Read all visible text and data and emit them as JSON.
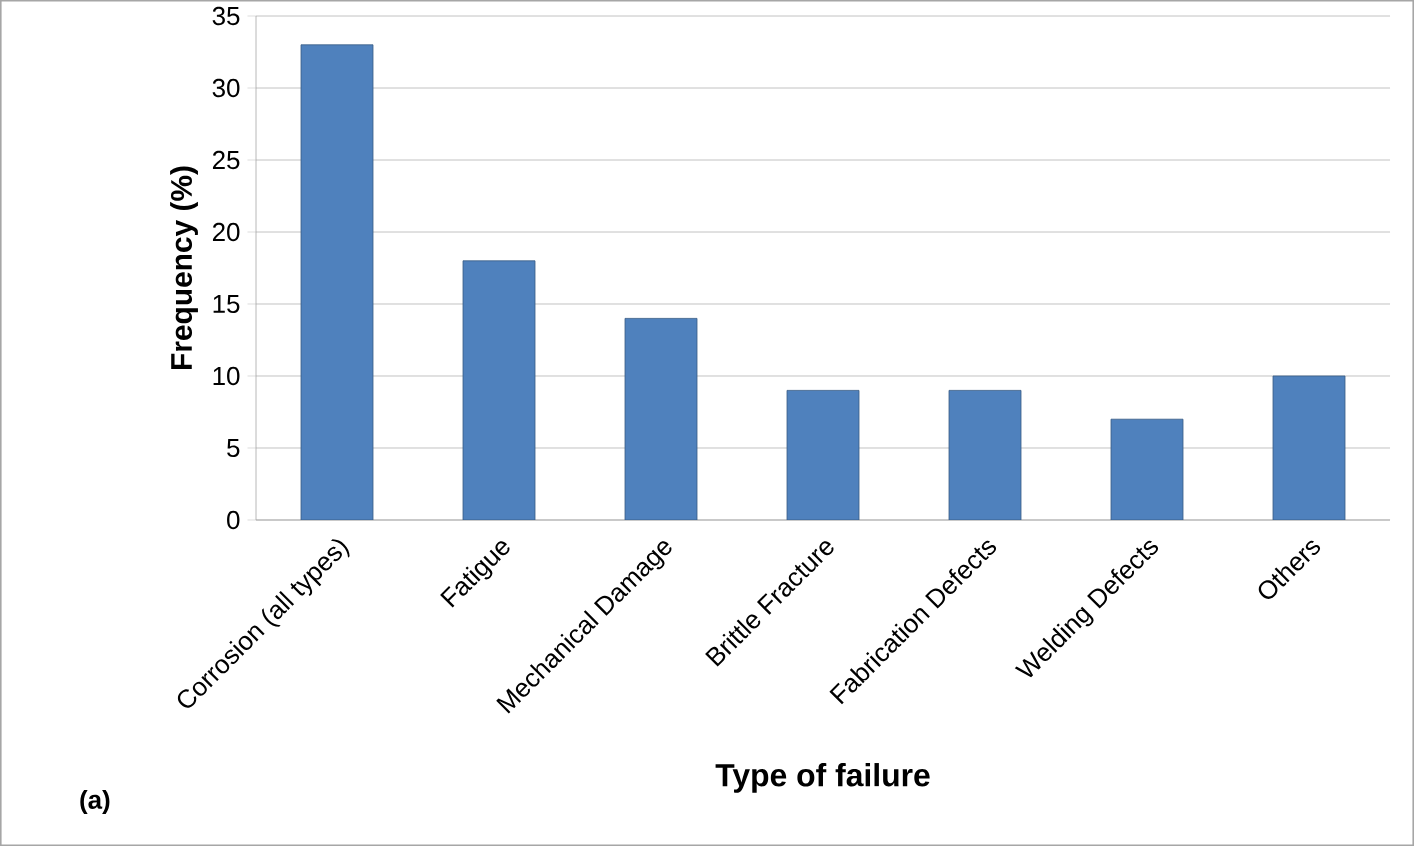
{
  "chart_data": {
    "type": "bar",
    "xlabel": "Type of failure",
    "ylabel": "Frequency (%)",
    "categories": [
      "Corrosion (all types)",
      "Fatigue",
      "Mechanical Damage",
      "Brittle Fracture",
      "Fabrication Defects",
      "Welding Defects",
      "Others"
    ],
    "values": [
      33,
      18,
      14,
      9,
      9,
      7,
      10
    ],
    "color": "#4f81bd",
    "ylim": [
      0,
      35
    ],
    "yticks": [
      0,
      5,
      10,
      15,
      20,
      25,
      30,
      35
    ],
    "grid": "y",
    "annotations": [
      "(a)"
    ]
  }
}
